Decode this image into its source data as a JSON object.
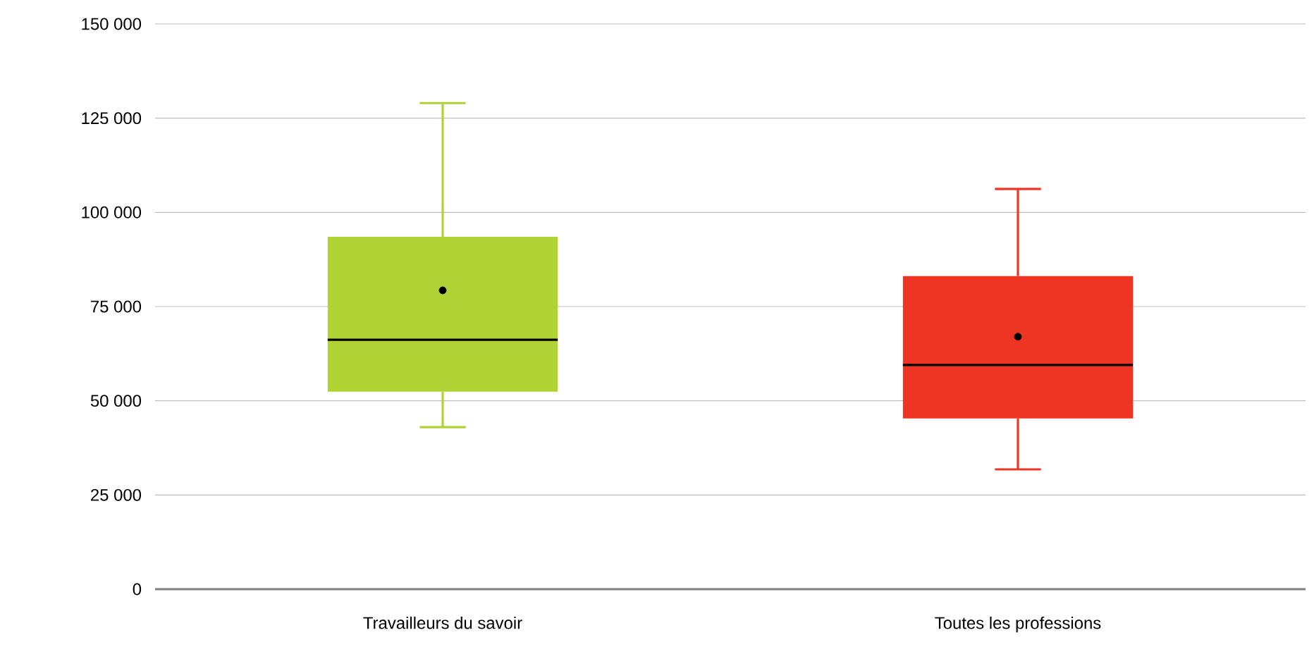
{
  "chart_data": {
    "type": "box",
    "categories": [
      "Travailleurs du savoir",
      "Toutes les professions"
    ],
    "boxes": [
      {
        "low": 43000,
        "q1": 52400,
        "median": 66200,
        "q3": 93500,
        "high": 129000,
        "mean": 79300
      },
      {
        "low": 31800,
        "q1": 45300,
        "median": 59500,
        "q3": 83100,
        "high": 106200,
        "mean": 67000
      }
    ],
    "colors": [
      "#b0d235",
      "#ee3524"
    ],
    "ylim": [
      0,
      150000
    ],
    "yticks": [
      {
        "value": 0,
        "label": "0"
      },
      {
        "value": 25000,
        "label": "25 000"
      },
      {
        "value": 50000,
        "label": "50 000"
      },
      {
        "value": 75000,
        "label": "75 000"
      },
      {
        "value": 100000,
        "label": "100 000"
      },
      {
        "value": 125000,
        "label": "125 000"
      },
      {
        "value": 150000,
        "label": "150 000"
      }
    ],
    "grid": "y"
  }
}
